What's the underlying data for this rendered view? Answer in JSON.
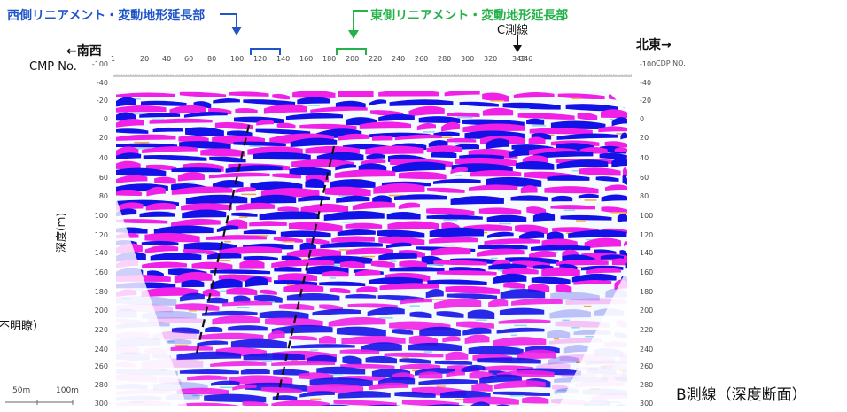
{
  "figure": {
    "west_extension_label": "西側リニアメント・変動地形延長部",
    "east_extension_label": "東側リニアメント・変動地形延長部",
    "c_line_label": "C測線",
    "left_direction": "←南西",
    "right_direction": "北東→",
    "cmp_label": "CMP No.",
    "cdp_label": "CDP NO.",
    "depth_axis_label": "深度(m)",
    "left_cut_text": "不明瞭）",
    "caption": "B測線（深度断面）",
    "scale_50": "50m",
    "scale_100": "100m",
    "cmp_ticks": [
      "1",
      "20",
      "40",
      "60",
      "80",
      "100",
      "120",
      "140",
      "160",
      "180",
      "200",
      "220",
      "240",
      "260",
      "280",
      "300",
      "320",
      "343",
      "346"
    ],
    "depth_ticks": [
      "-100",
      "-40",
      "-20",
      "0",
      "20",
      "40",
      "60",
      "80",
      "100",
      "120",
      "140",
      "160",
      "180",
      "200",
      "220",
      "240",
      "260",
      "280",
      "300"
    ],
    "colors": {
      "magenta": "#f020e6",
      "blue": "#1212e6",
      "cyan": "#8fd8ec",
      "orange": "#f2a64b",
      "west_marker": "#1f55c8",
      "east_marker": "#24b34a"
    }
  }
}
